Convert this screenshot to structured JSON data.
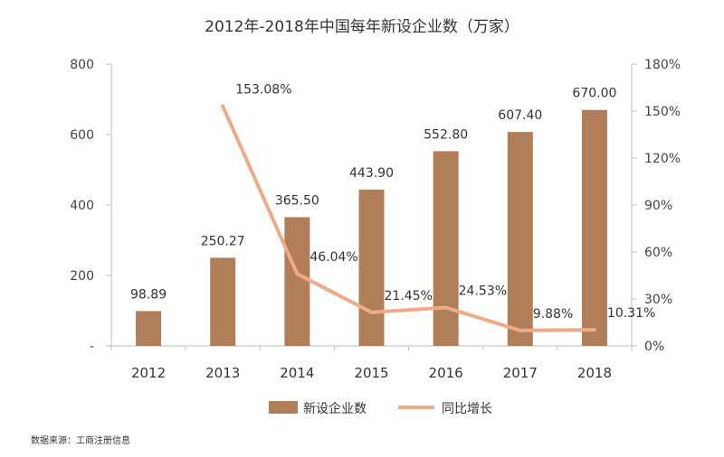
{
  "title": "2012年-2018年中国每年新设企业数（万家）",
  "source": "数据来源：工商注册信息",
  "colors": {
    "bar": "#b07f5a",
    "line": "#efaa86",
    "axis": "#bfbfbf"
  },
  "chart_data": {
    "type": "bar+line",
    "title": "2012年-2018年中国每年新设企业数（万家）",
    "categories": [
      "2012",
      "2013",
      "2014",
      "2015",
      "2016",
      "2017",
      "2018"
    ],
    "series": [
      {
        "name": "新设企业数",
        "type": "bar",
        "axis": "left",
        "values": [
          98.89,
          250.27,
          365.5,
          443.9,
          552.8,
          607.4,
          670.0
        ],
        "labels": [
          "98.89",
          "250.27",
          "365.50",
          "443.90",
          "552.80",
          "607.40",
          "670.00"
        ]
      },
      {
        "name": "同比增长",
        "type": "line",
        "axis": "right",
        "values": [
          null,
          153.08,
          46.04,
          21.45,
          24.53,
          9.88,
          10.31
        ],
        "labels": [
          "",
          "153.08%",
          "46.04%",
          "21.45%",
          "24.53%",
          "9.88%",
          "10.31%"
        ]
      }
    ],
    "y_left": {
      "ylim": [
        0,
        800
      ],
      "ticks": [
        "-",
        "200",
        "400",
        "600",
        "800"
      ]
    },
    "y_right": {
      "ylim": [
        0,
        180
      ],
      "ticks": [
        "0%",
        "30%",
        "60%",
        "90%",
        "120%",
        "150%",
        "180%"
      ]
    },
    "grid": false,
    "legend": "bottom-center"
  }
}
